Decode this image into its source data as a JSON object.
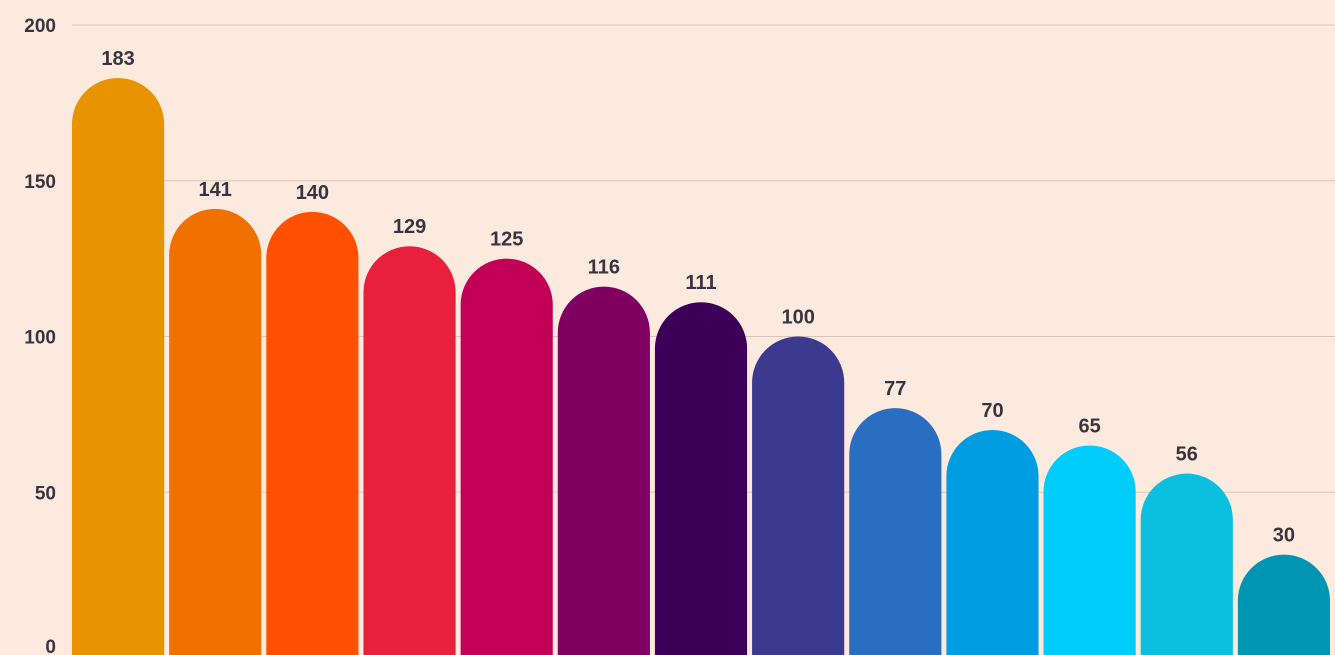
{
  "chart_data": {
    "type": "bar",
    "title": "",
    "xlabel": "",
    "ylabel": "",
    "ylim": [
      0,
      200
    ],
    "yticks": [
      0,
      50,
      100,
      150,
      200
    ],
    "grid": true,
    "legend": "none",
    "values": [
      183,
      141,
      140,
      129,
      125,
      116,
      111,
      100,
      77,
      70,
      65,
      56,
      30
    ],
    "colors": [
      "#e89400",
      "#f07100",
      "#ff5000",
      "#e8203e",
      "#c20055",
      "#7f0060",
      "#3c0058",
      "#3b3a8e",
      "#2a6ec2",
      "#009de3",
      "#00cdfc",
      "#0bc0df",
      "#0096b3"
    ]
  }
}
